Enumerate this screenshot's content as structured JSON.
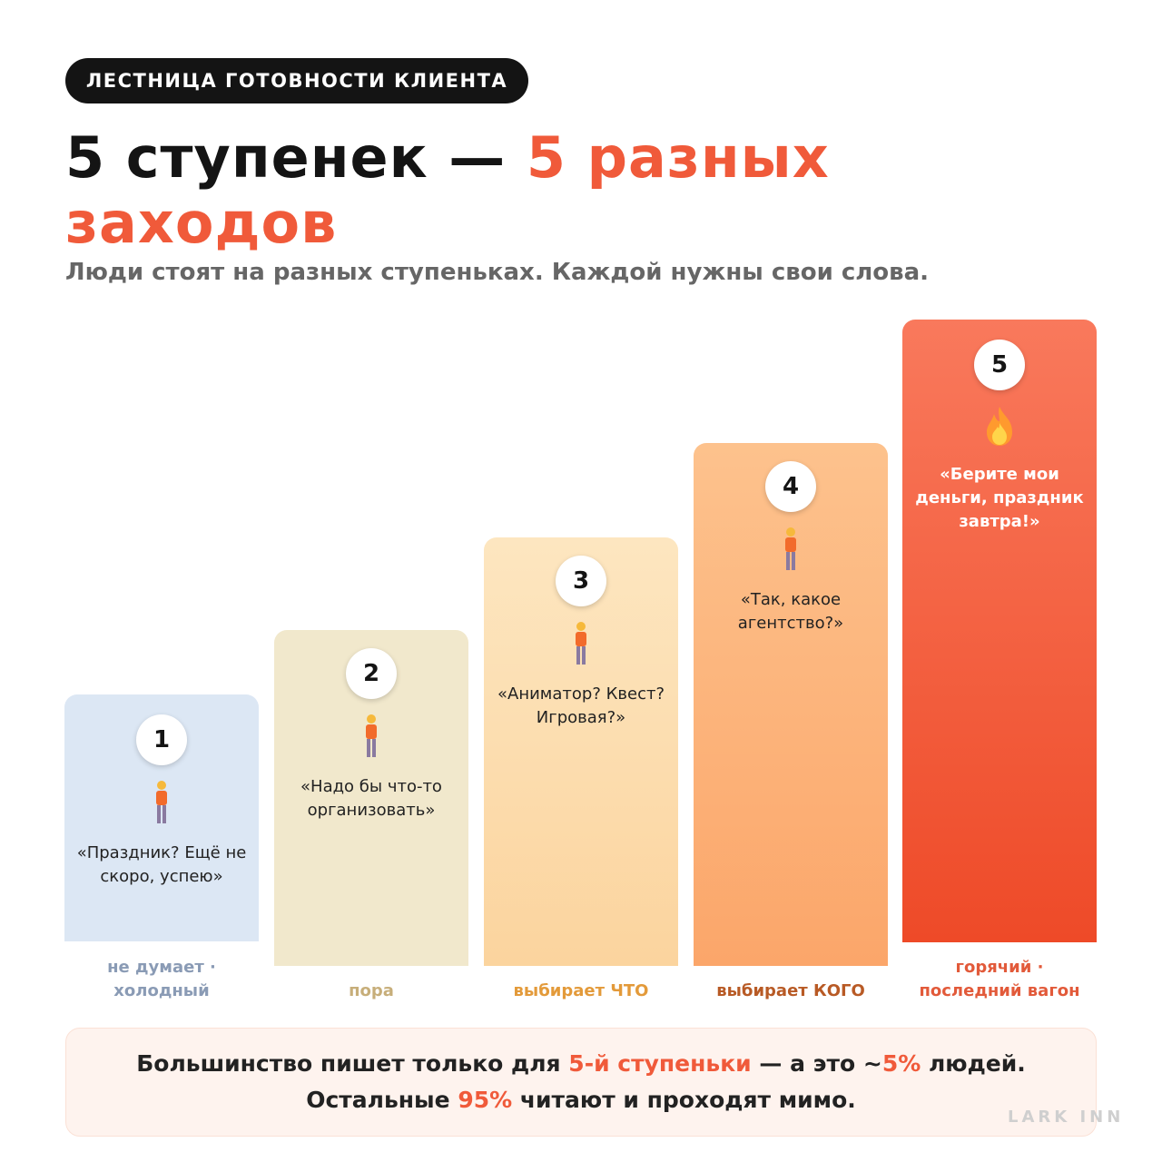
{
  "badge": "ЛЕСТНИЦА ГОТОВНОСТИ КЛИЕНТА",
  "title": {
    "part1": "5 ступенек — ",
    "accent1": "5 разных",
    "accent2": "заходов"
  },
  "subtitle": "Люди стоят на разных ступеньках. Каждой нужны свои слова.",
  "steps": [
    {
      "number": "1",
      "quote": "«Праздник? Ещё не скоро, успею»",
      "label_line1": "не думает ·",
      "label_line2": "холодный",
      "icon": "person-icon"
    },
    {
      "number": "2",
      "quote": "«Надо бы что-то организовать»",
      "label_line1": "",
      "label_line2": "пора",
      "icon": "person-icon"
    },
    {
      "number": "3",
      "quote": "«Аниматор? Квест? Игровая?»",
      "label_line1": "",
      "label_line2": "выбирает ЧТО",
      "icon": "person-icon"
    },
    {
      "number": "4",
      "quote": "«Так, какое агентство?»",
      "label_line1": "",
      "label_line2": "выбирает КОГО",
      "icon": "person-icon"
    },
    {
      "number": "5",
      "quote": "«Берите мои деньги, праздник завтра!»",
      "label_line1": "горячий ·",
      "label_line2": "последний вагон",
      "icon": "fire-icon"
    }
  ],
  "note": {
    "line1_a": "Большинство пишет только для ",
    "line1_hl1": "5-й ступеньки",
    "line1_b": " — а это ~",
    "line1_hl2": "5%",
    "line1_c": " людей.",
    "line2_a": "Остальные ",
    "line2_hl": "95%",
    "line2_b": " читают и проходят мимо."
  },
  "watermark": "LARK INN",
  "colors": {
    "accent": "#f05a3a",
    "dark": "#141414",
    "step1": "#dce7f4",
    "step2": "#f1e8cc",
    "step3": "#fbd49e",
    "step4": "#fba66a",
    "step5": "#ee4a28"
  }
}
